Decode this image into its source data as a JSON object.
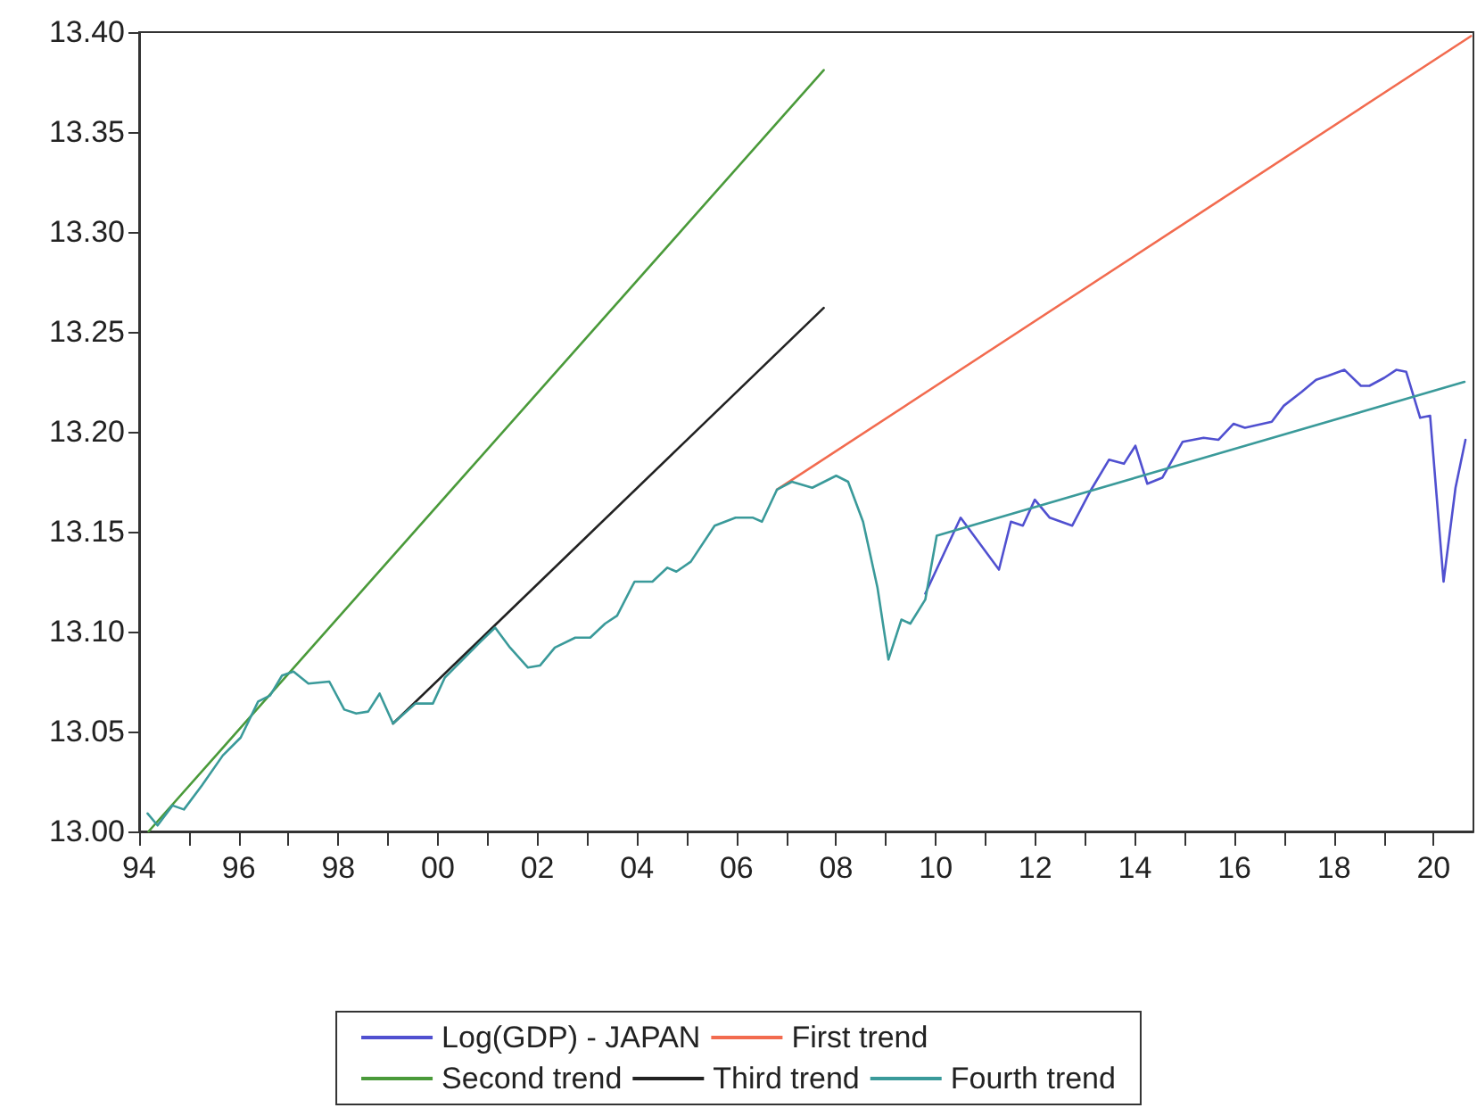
{
  "chart_data": {
    "type": "line",
    "legend": "bottom",
    "marker": "none",
    "line_style": "solid",
    "xlim": [
      1994,
      2020.8
    ],
    "xticks": [
      {
        "value": 1994,
        "label": "94"
      },
      {
        "value": 1995,
        "label": null
      },
      {
        "value": 1996,
        "label": "96"
      },
      {
        "value": 1997,
        "label": null
      },
      {
        "value": 1998,
        "label": "98"
      },
      {
        "value": 1999,
        "label": null
      },
      {
        "value": 2000,
        "label": "00"
      },
      {
        "value": 2001,
        "label": null
      },
      {
        "value": 2002,
        "label": "02"
      },
      {
        "value": 2003,
        "label": null
      },
      {
        "value": 2004,
        "label": "04"
      },
      {
        "value": 2005,
        "label": null
      },
      {
        "value": 2006,
        "label": "06"
      },
      {
        "value": 2007,
        "label": null
      },
      {
        "value": 2008,
        "label": "08"
      },
      {
        "value": 2009,
        "label": null
      },
      {
        "value": 2010,
        "label": "10"
      },
      {
        "value": 2011,
        "label": null
      },
      {
        "value": 2012,
        "label": "12"
      },
      {
        "value": 2013,
        "label": null
      },
      {
        "value": 2014,
        "label": "14"
      },
      {
        "value": 2015,
        "label": null
      },
      {
        "value": 2016,
        "label": "16"
      },
      {
        "value": 2017,
        "label": null
      },
      {
        "value": 2018,
        "label": "18"
      },
      {
        "value": 2019,
        "label": null
      },
      {
        "value": 2020,
        "label": "20"
      }
    ],
    "ylim": [
      13.0,
      13.4
    ],
    "yticks": [
      {
        "value": 13.0,
        "label": "13.00"
      },
      {
        "value": 13.05,
        "label": "13.05"
      },
      {
        "value": 13.1,
        "label": "13.10"
      },
      {
        "value": 13.15,
        "label": "13.15"
      },
      {
        "value": 13.2,
        "label": "13.20"
      },
      {
        "value": 13.25,
        "label": "13.25"
      },
      {
        "value": 13.3,
        "label": "13.30"
      },
      {
        "value": 13.35,
        "label": "13.35"
      },
      {
        "value": 13.4,
        "label": "13.40"
      }
    ],
    "series": [
      {
        "name": "Log(GDP) - JAPAN",
        "color": "#5050d0",
        "x": [
          2009.79,
          2010.5,
          2011.27,
          2011.51,
          2011.75,
          2011.99,
          2012.29,
          2012.74,
          2013.12,
          2013.48,
          2013.78,
          2014.01,
          2014.25,
          2014.55,
          2014.96,
          2015.38,
          2015.68,
          2015.98,
          2016.21,
          2016.75,
          2016.99,
          2017.35,
          2017.64,
          2017.88,
          2018.21,
          2018.54,
          2018.71,
          2019.01,
          2019.25,
          2019.45,
          2019.73,
          2019.93,
          2020.2,
          2020.44,
          2020.64
        ],
        "values": [
          13.119,
          13.157,
          13.131,
          13.155,
          13.153,
          13.166,
          13.157,
          13.153,
          13.171,
          13.186,
          13.184,
          13.193,
          13.174,
          13.177,
          13.195,
          13.197,
          13.196,
          13.204,
          13.202,
          13.205,
          13.213,
          13.22,
          13.226,
          13.228,
          13.231,
          13.223,
          13.223,
          13.227,
          13.231,
          13.23,
          13.207,
          13.208,
          13.125,
          13.172,
          13.196
        ]
      },
      {
        "name": "First trend",
        "color": "#f26b4f",
        "x": [
          2006.81,
          2020.75
        ],
        "values": [
          13.171,
          13.398
        ]
      },
      {
        "name": "Second trend",
        "color": "#4a9a3a",
        "x": [
          1994.19,
          2007.75
        ],
        "values": [
          13.0,
          13.381
        ]
      },
      {
        "name": "Third trend",
        "color": "#222222",
        "x": [
          1999.1,
          2007.75
        ],
        "values": [
          13.054,
          13.262
        ]
      },
      {
        "name": "Fourth trend",
        "color": "#3a9a9a",
        "x": [
          1994.17,
          1994.37,
          1994.67,
          1994.9,
          1995.26,
          1995.68,
          1996.04,
          1996.39,
          1996.63,
          1996.87,
          1997.1,
          1997.4,
          1997.82,
          1998.12,
          1998.36,
          1998.6,
          1998.83,
          1999.1,
          1999.55,
          1999.9,
          2000.14,
          2000.5,
          2000.86,
          2001.15,
          2001.45,
          2001.81,
          2002.05,
          2002.35,
          2002.76,
          2003.06,
          2003.36,
          2003.6,
          2003.95,
          2004.31,
          2004.61,
          2004.79,
          2005.08,
          2005.56,
          2005.98,
          2006.33,
          2006.51,
          2006.81,
          2007.11,
          2007.52,
          2008.0,
          2008.24,
          2008.54,
          2008.83,
          2009.05,
          2009.31,
          2009.49,
          2009.79,
          2010.02,
          2020.62
        ],
        "values": [
          13.009,
          13.003,
          13.013,
          13.011,
          13.023,
          13.038,
          13.047,
          13.065,
          13.068,
          13.078,
          13.08,
          13.074,
          13.075,
          13.061,
          13.059,
          13.06,
          13.069,
          13.054,
          13.064,
          13.064,
          13.077,
          13.086,
          13.095,
          13.102,
          13.092,
          13.082,
          13.083,
          13.092,
          13.097,
          13.097,
          13.104,
          13.108,
          13.125,
          13.125,
          13.132,
          13.13,
          13.135,
          13.153,
          13.157,
          13.157,
          13.155,
          13.171,
          13.175,
          13.172,
          13.178,
          13.175,
          13.155,
          13.122,
          13.086,
          13.106,
          13.104,
          13.116,
          13.148,
          13.225
        ]
      }
    ]
  }
}
